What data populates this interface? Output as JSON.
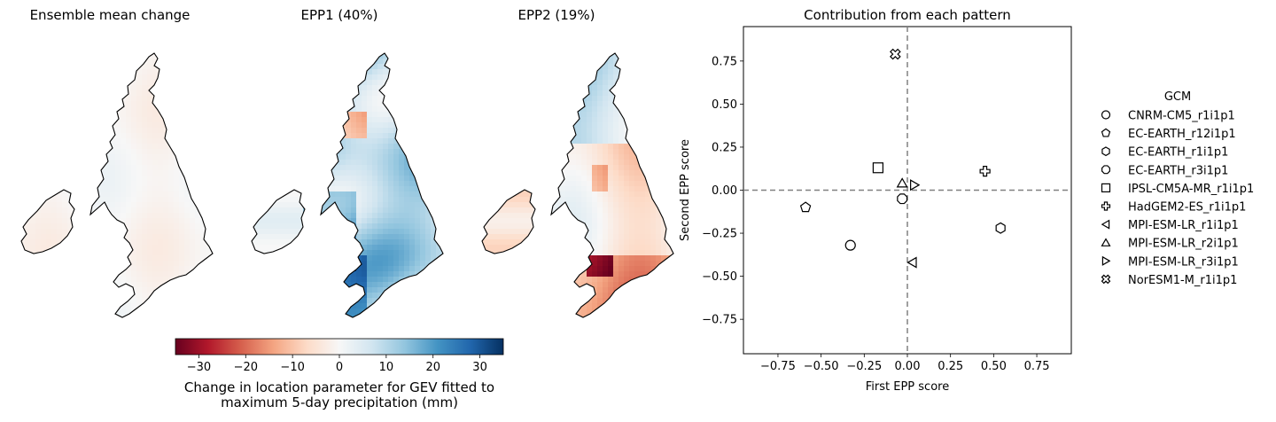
{
  "maps": [
    {
      "title": "Ensemble mean change",
      "pattern": "mean"
    },
    {
      "title": "EPP1 (40%)",
      "pattern": "epp1"
    },
    {
      "title": "EPP2 (19%)",
      "pattern": "epp2"
    }
  ],
  "colorbar": {
    "label_line1": "Change in location parameter for GEV fitted to",
    "label_line2": "maximum 5-day precipitation (mm)",
    "range": [
      -35,
      35
    ],
    "ticks": [
      -30,
      -20,
      -10,
      0,
      10,
      20,
      30
    ],
    "tick_labels": [
      "−30",
      "−20",
      "−10",
      "0",
      "10",
      "20",
      "30"
    ],
    "colormap": [
      "#67001f",
      "#b2182b",
      "#d6604d",
      "#f4a582",
      "#fddbc7",
      "#f7f7f7",
      "#d1e5f0",
      "#92c5de",
      "#4393c3",
      "#2166ac",
      "#053061"
    ]
  },
  "chart_data": {
    "type": "scatter",
    "title": "Contribution from each pattern",
    "xlabel": "First EPP score",
    "ylabel": "Second EPP score",
    "xlim": [
      -0.95,
      0.95
    ],
    "ylim": [
      -0.95,
      0.95
    ],
    "xticks": [
      -0.75,
      -0.5,
      -0.25,
      0.0,
      0.25,
      0.5,
      0.75
    ],
    "xtick_labels": [
      "−0.75",
      "−0.50",
      "−0.25",
      "0.00",
      "0.25",
      "0.50",
      "0.75"
    ],
    "yticks": [
      -0.75,
      -0.5,
      -0.25,
      0.0,
      0.25,
      0.5,
      0.75
    ],
    "ytick_labels": [
      "−0.75",
      "−0.50",
      "−0.25",
      "0.00",
      "0.25",
      "0.50",
      "0.75"
    ],
    "reference_lines": {
      "x": 0,
      "y": 0,
      "style": "dashed",
      "color": "#808080"
    },
    "legend_title": "GCM",
    "legend_location": "right, outside",
    "series": [
      {
        "name": "CNRM-CM5_r1i1p1",
        "marker": "circle",
        "x": -0.33,
        "y": -0.32
      },
      {
        "name": "EC-EARTH_r12i1p1",
        "marker": "pentagon",
        "x": -0.59,
        "y": -0.1
      },
      {
        "name": "EC-EARTH_r1i1p1",
        "marker": "hexagon",
        "x": 0.54,
        "y": -0.22
      },
      {
        "name": "EC-EARTH_r3i1p1",
        "marker": "octagon",
        "x": -0.03,
        "y": -0.05
      },
      {
        "name": "IPSL-CM5A-MR_r1i1p1",
        "marker": "square",
        "x": -0.17,
        "y": 0.13
      },
      {
        "name": "HadGEM2-ES_r1i1p1",
        "marker": "plus",
        "x": 0.45,
        "y": 0.11
      },
      {
        "name": "MPI-ESM-LR_r1i1p1",
        "marker": "triangle-left",
        "x": 0.03,
        "y": -0.42
      },
      {
        "name": "MPI-ESM-LR_r2i1p1",
        "marker": "triangle-up",
        "x": -0.03,
        "y": 0.04
      },
      {
        "name": "MPI-ESM-LR_r3i1p1",
        "marker": "triangle-right",
        "x": 0.04,
        "y": 0.03
      },
      {
        "name": "NorESM1-M_r1i1p1",
        "marker": "x-filled",
        "x": -0.07,
        "y": 0.79
      }
    ]
  }
}
